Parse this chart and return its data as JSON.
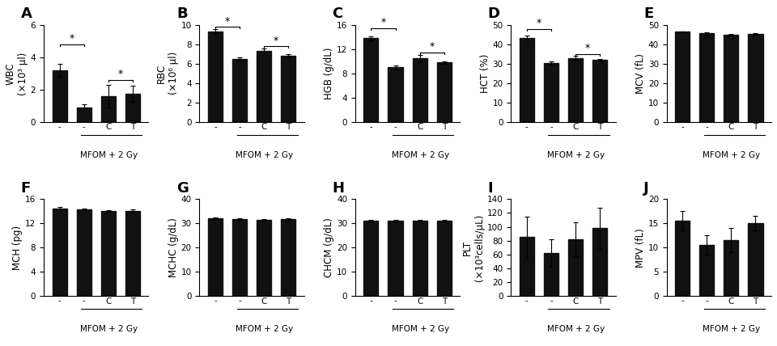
{
  "panels": [
    {
      "label": "A",
      "ylabel": "WBC\n(X10³ μl)",
      "ylim": [
        0,
        6
      ],
      "yticks": [
        0,
        2,
        4,
        6
      ],
      "bars": [
        3.2,
        0.9,
        1.6,
        1.75
      ],
      "errors": [
        0.4,
        0.2,
        0.7,
        0.5
      ],
      "sig_brackets": [
        [
          [
            0,
            1
          ],
          "*",
          4.8
        ],
        [
          [
            2,
            3
          ],
          "*",
          2.6
        ]
      ],
      "xlabel_ticks": [
        "-",
        "-",
        "C",
        "T"
      ],
      "group_label": "MFOM + 2 Gy",
      "group_span": [
        1,
        3
      ]
    },
    {
      "label": "B",
      "ylabel": "RBC\n(X10⁶ μl)",
      "ylim": [
        0,
        10
      ],
      "yticks": [
        0,
        2,
        4,
        6,
        8,
        10
      ],
      "bars": [
        9.3,
        6.5,
        7.3,
        6.8
      ],
      "errors": [
        0.25,
        0.15,
        0.3,
        0.15
      ],
      "sig_brackets": [
        [
          [
            0,
            1
          ],
          "*",
          9.8
        ],
        [
          [
            2,
            3
          ],
          "*",
          7.8
        ]
      ],
      "xlabel_ticks": [
        "-",
        "-",
        "C",
        "T"
      ],
      "group_label": "MFOM + 2 Gy",
      "group_span": [
        1,
        3
      ]
    },
    {
      "label": "C",
      "ylabel": "HGB (g/dL)",
      "ylim": [
        0,
        16
      ],
      "yticks": [
        0,
        4,
        8,
        12,
        16
      ],
      "bars": [
        13.8,
        9.0,
        10.5,
        9.8
      ],
      "errors": [
        0.3,
        0.3,
        0.5,
        0.2
      ],
      "sig_brackets": [
        [
          [
            0,
            1
          ],
          "*",
          15.5
        ],
        [
          [
            2,
            3
          ],
          "*",
          11.5
        ]
      ],
      "xlabel_ticks": [
        "-",
        "-",
        "C",
        "T"
      ],
      "group_label": "MFOM + 2 Gy",
      "group_span": [
        1,
        3
      ]
    },
    {
      "label": "D",
      "ylabel": "HCT (%)",
      "ylim": [
        0,
        50
      ],
      "yticks": [
        0,
        10,
        20,
        30,
        40,
        50
      ],
      "bars": [
        43.5,
        30.5,
        33.0,
        32.0
      ],
      "errors": [
        1.0,
        0.8,
        1.0,
        0.5
      ],
      "sig_brackets": [
        [
          [
            0,
            1
          ],
          "*",
          48
        ],
        [
          [
            2,
            3
          ],
          "*",
          35
        ]
      ],
      "xlabel_ticks": [
        "-",
        "-",
        "C",
        "T"
      ],
      "group_label": "MFOM + 2 Gy",
      "group_span": [
        1,
        3
      ]
    },
    {
      "label": "E",
      "ylabel": "MCV (fL)",
      "ylim": [
        0,
        50
      ],
      "yticks": [
        0,
        10,
        20,
        30,
        40,
        50
      ],
      "bars": [
        46.5,
        46.0,
        45.0,
        45.5
      ],
      "errors": [
        0.3,
        0.4,
        0.3,
        0.5
      ],
      "sig_brackets": [],
      "xlabel_ticks": [
        "-",
        "-",
        "C",
        "T"
      ],
      "group_label": "MFOM + 2 Gy",
      "group_span": [
        1,
        3
      ]
    },
    {
      "label": "F",
      "ylabel": "MCH (pg)",
      "ylim": [
        0,
        16
      ],
      "yticks": [
        0,
        4,
        8,
        12,
        16
      ],
      "bars": [
        14.5,
        14.3,
        14.0,
        14.1
      ],
      "errors": [
        0.2,
        0.15,
        0.15,
        0.15
      ],
      "sig_brackets": [],
      "xlabel_ticks": [
        "-",
        "-",
        "C",
        "T"
      ],
      "group_label": "MFOM + 2 Gy",
      "group_span": [
        1,
        3
      ]
    },
    {
      "label": "G",
      "ylabel": "MCHC (g/dL)",
      "ylim": [
        0,
        40
      ],
      "yticks": [
        0,
        10,
        20,
        30,
        40
      ],
      "bars": [
        32.0,
        31.8,
        31.5,
        31.7
      ],
      "errors": [
        0.4,
        0.3,
        0.35,
        0.3
      ],
      "sig_brackets": [],
      "xlabel_ticks": [
        "-",
        "-",
        "C",
        "T"
      ],
      "group_label": "MFOM + 2 Gy",
      "group_span": [
        1,
        3
      ]
    },
    {
      "label": "H",
      "ylabel": "CHCM (g/dL)",
      "ylim": [
        0,
        40
      ],
      "yticks": [
        0,
        10,
        20,
        30,
        40
      ],
      "bars": [
        31.0,
        31.0,
        31.0,
        31.0
      ],
      "errors": [
        0.3,
        0.3,
        0.3,
        0.3
      ],
      "sig_brackets": [],
      "xlabel_ticks": [
        "-",
        "-",
        "C",
        "T"
      ],
      "group_label": "MFOM + 2 Gy",
      "group_span": [
        1,
        3
      ]
    },
    {
      "label": "I",
      "ylabel": "PLT\n(x10³cells/μL)",
      "ylim": [
        0,
        140
      ],
      "yticks": [
        0,
        20,
        40,
        60,
        80,
        100,
        120,
        140
      ],
      "bars": [
        85,
        62,
        82,
        98
      ],
      "errors": [
        30,
        20,
        25,
        30
      ],
      "sig_brackets": [],
      "xlabel_ticks": [
        "-",
        "-",
        "C",
        "T"
      ],
      "group_label": "MFOM + 2 Gy",
      "group_span": [
        1,
        3
      ]
    },
    {
      "label": "J",
      "ylabel": "MPV (fL)",
      "ylim": [
        0,
        20
      ],
      "yticks": [
        0,
        5,
        10,
        15,
        20
      ],
      "bars": [
        15.5,
        10.5,
        11.5,
        15.0
      ],
      "errors": [
        2.0,
        2.0,
        2.5,
        1.5
      ],
      "sig_brackets": [],
      "xlabel_ticks": [
        "-",
        "-",
        "C",
        "T"
      ],
      "group_label": "MFOM + 2 Gy",
      "group_span": [
        1,
        3
      ]
    }
  ],
  "bar_color": "#111111",
  "bar_width": 0.6,
  "figsize": [
    9.6,
    4.28
  ],
  "dpi": 100,
  "background_color": "#ffffff",
  "label_fontsize": 8.5,
  "tick_fontsize": 7.5,
  "panel_label_fontsize": 13
}
